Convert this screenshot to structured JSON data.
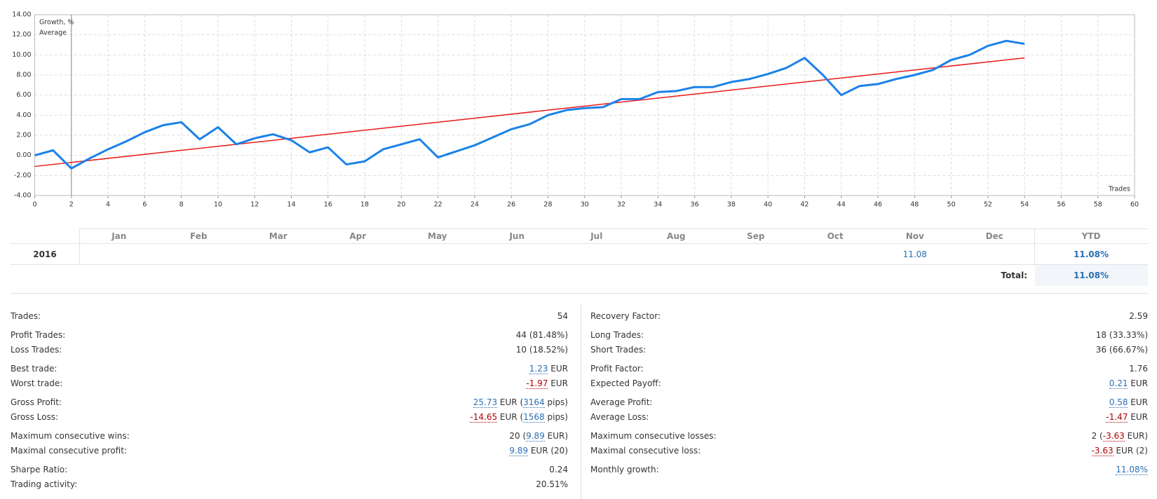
{
  "chart_data": {
    "type": "line",
    "xlabel": "Trades",
    "series": [
      {
        "name": "Growth, %",
        "color": "#1a82e8",
        "x": [
          0,
          1,
          2,
          3,
          4,
          5,
          6,
          7,
          8,
          9,
          10,
          11,
          12,
          13,
          14,
          15,
          16,
          17,
          18,
          19,
          20,
          21,
          22,
          23,
          24,
          25,
          26,
          27,
          28,
          29,
          30,
          31,
          32,
          33,
          34,
          35,
          36,
          37,
          38,
          39,
          40,
          41,
          42,
          43,
          44,
          45,
          46,
          47,
          48,
          49,
          50,
          51,
          52,
          53,
          54
        ],
        "values": [
          0.0,
          0.5,
          -1.3,
          -0.3,
          0.6,
          1.4,
          2.3,
          3.0,
          3.3,
          1.6,
          2.8,
          1.1,
          1.7,
          2.1,
          1.5,
          0.3,
          0.8,
          -0.9,
          -0.6,
          0.6,
          1.1,
          1.6,
          -0.2,
          0.4,
          1.0,
          1.8,
          2.6,
          3.1,
          4.0,
          4.5,
          4.7,
          4.8,
          5.6,
          5.6,
          6.3,
          6.4,
          6.8,
          6.8,
          7.3,
          7.6,
          8.1,
          8.7,
          9.7,
          8.0,
          6.0,
          6.9,
          7.1,
          7.6,
          8.0,
          8.5,
          9.5,
          10.0,
          10.9,
          11.4,
          11.1
        ]
      },
      {
        "name": "Average",
        "color": "#e81a1a",
        "x": [
          0,
          54
        ],
        "values": [
          -1.1,
          9.7
        ]
      }
    ],
    "xlim": [
      0,
      60
    ],
    "xticks": [
      0,
      2,
      4,
      6,
      8,
      10,
      12,
      14,
      16,
      18,
      20,
      22,
      24,
      26,
      28,
      30,
      32,
      34,
      36,
      38,
      40,
      42,
      44,
      46,
      48,
      50,
      52,
      54,
      56,
      58,
      60
    ],
    "ylim": [
      -4,
      14
    ],
    "yticks": [
      {
        "value": -4,
        "label": "-4.00"
      },
      {
        "value": -2,
        "label": "-2.00"
      },
      {
        "value": 0,
        "label": "0.00"
      },
      {
        "value": 2,
        "label": "2.00"
      },
      {
        "value": 4,
        "label": "4.00"
      },
      {
        "value": 6,
        "label": "6.00"
      },
      {
        "value": 8,
        "label": "8.00"
      },
      {
        "value": 10,
        "label": "10.00"
      },
      {
        "value": 12,
        "label": "12.00"
      },
      {
        "value": 14,
        "label": "14.00"
      }
    ],
    "grid": true
  },
  "returns_table": {
    "columns": [
      "Jan",
      "Feb",
      "Mar",
      "Apr",
      "May",
      "Jun",
      "Jul",
      "Aug",
      "Sep",
      "Oct",
      "Nov",
      "Dec",
      "YTD"
    ],
    "rows": [
      {
        "year": "2016",
        "cells": [
          null,
          null,
          null,
          null,
          null,
          null,
          null,
          null,
          null,
          null,
          "11.08",
          null,
          "11.08%"
        ]
      }
    ],
    "total_label": "Total:",
    "total_value": "11.08%"
  },
  "stats": {
    "left": [
      [
        {
          "label": "Trades:",
          "value": [
            "54"
          ]
        }
      ],
      [
        {
          "label": "Profit Trades:",
          "value": [
            "44 (81.48%)"
          ]
        },
        {
          "label": "Loss Trades:",
          "value": [
            "10 (18.52%)"
          ]
        }
      ],
      [
        {
          "label": "Best trade:",
          "value": [
            {
              "text": "1.23",
              "tone": "blue"
            },
            " EUR"
          ]
        },
        {
          "label": "Worst trade:",
          "value": [
            {
              "text": "-1.97",
              "tone": "red"
            },
            " EUR"
          ]
        }
      ],
      [
        {
          "label": "Gross Profit:",
          "value": [
            {
              "text": "25.73",
              "tone": "blue"
            },
            " EUR (",
            {
              "text": "3164",
              "tone": "blue"
            },
            " pips)"
          ]
        },
        {
          "label": "Gross Loss:",
          "value": [
            {
              "text": "-14.65",
              "tone": "red"
            },
            " EUR (",
            {
              "text": "1568",
              "tone": "blue"
            },
            " pips)"
          ]
        }
      ],
      [
        {
          "label": "Maximum consecutive wins:",
          "value": [
            "20 (",
            {
              "text": "9.89",
              "tone": "blue"
            },
            " EUR)"
          ]
        },
        {
          "label": "Maximal consecutive profit:",
          "value": [
            {
              "text": "9.89",
              "tone": "blue"
            },
            " EUR (20)"
          ]
        }
      ],
      [
        {
          "label": "Sharpe Ratio:",
          "value": [
            "0.24"
          ]
        },
        {
          "label": "Trading activity:",
          "value": [
            "20.51%"
          ]
        }
      ]
    ],
    "right": [
      [
        {
          "label": "Recovery Factor:",
          "value": [
            "2.59"
          ]
        }
      ],
      [
        {
          "label": "Long Trades:",
          "value": [
            "18 (33.33%)"
          ]
        },
        {
          "label": "Short Trades:",
          "value": [
            "36 (66.67%)"
          ]
        }
      ],
      [
        {
          "label": "Profit Factor:",
          "value": [
            "1.76"
          ]
        },
        {
          "label": "Expected Payoff:",
          "value": [
            {
              "text": "0.21",
              "tone": "blue"
            },
            " EUR"
          ]
        }
      ],
      [
        {
          "label": "Average Profit:",
          "value": [
            {
              "text": "0.58",
              "tone": "blue"
            },
            " EUR"
          ]
        },
        {
          "label": "Average Loss:",
          "value": [
            {
              "text": "-1.47",
              "tone": "red"
            },
            " EUR"
          ]
        }
      ],
      [
        {
          "label": "Maximum consecutive losses:",
          "value": [
            "2 (",
            {
              "text": "-3.63",
              "tone": "red"
            },
            " EUR)"
          ]
        },
        {
          "label": "Maximal consecutive loss:",
          "value": [
            {
              "text": "-3.63",
              "tone": "red"
            },
            " EUR (2)"
          ]
        }
      ],
      [
        {
          "label": "Monthly growth:",
          "value": [
            {
              "text": "11.08%",
              "tone": "blue"
            }
          ]
        }
      ]
    ]
  }
}
